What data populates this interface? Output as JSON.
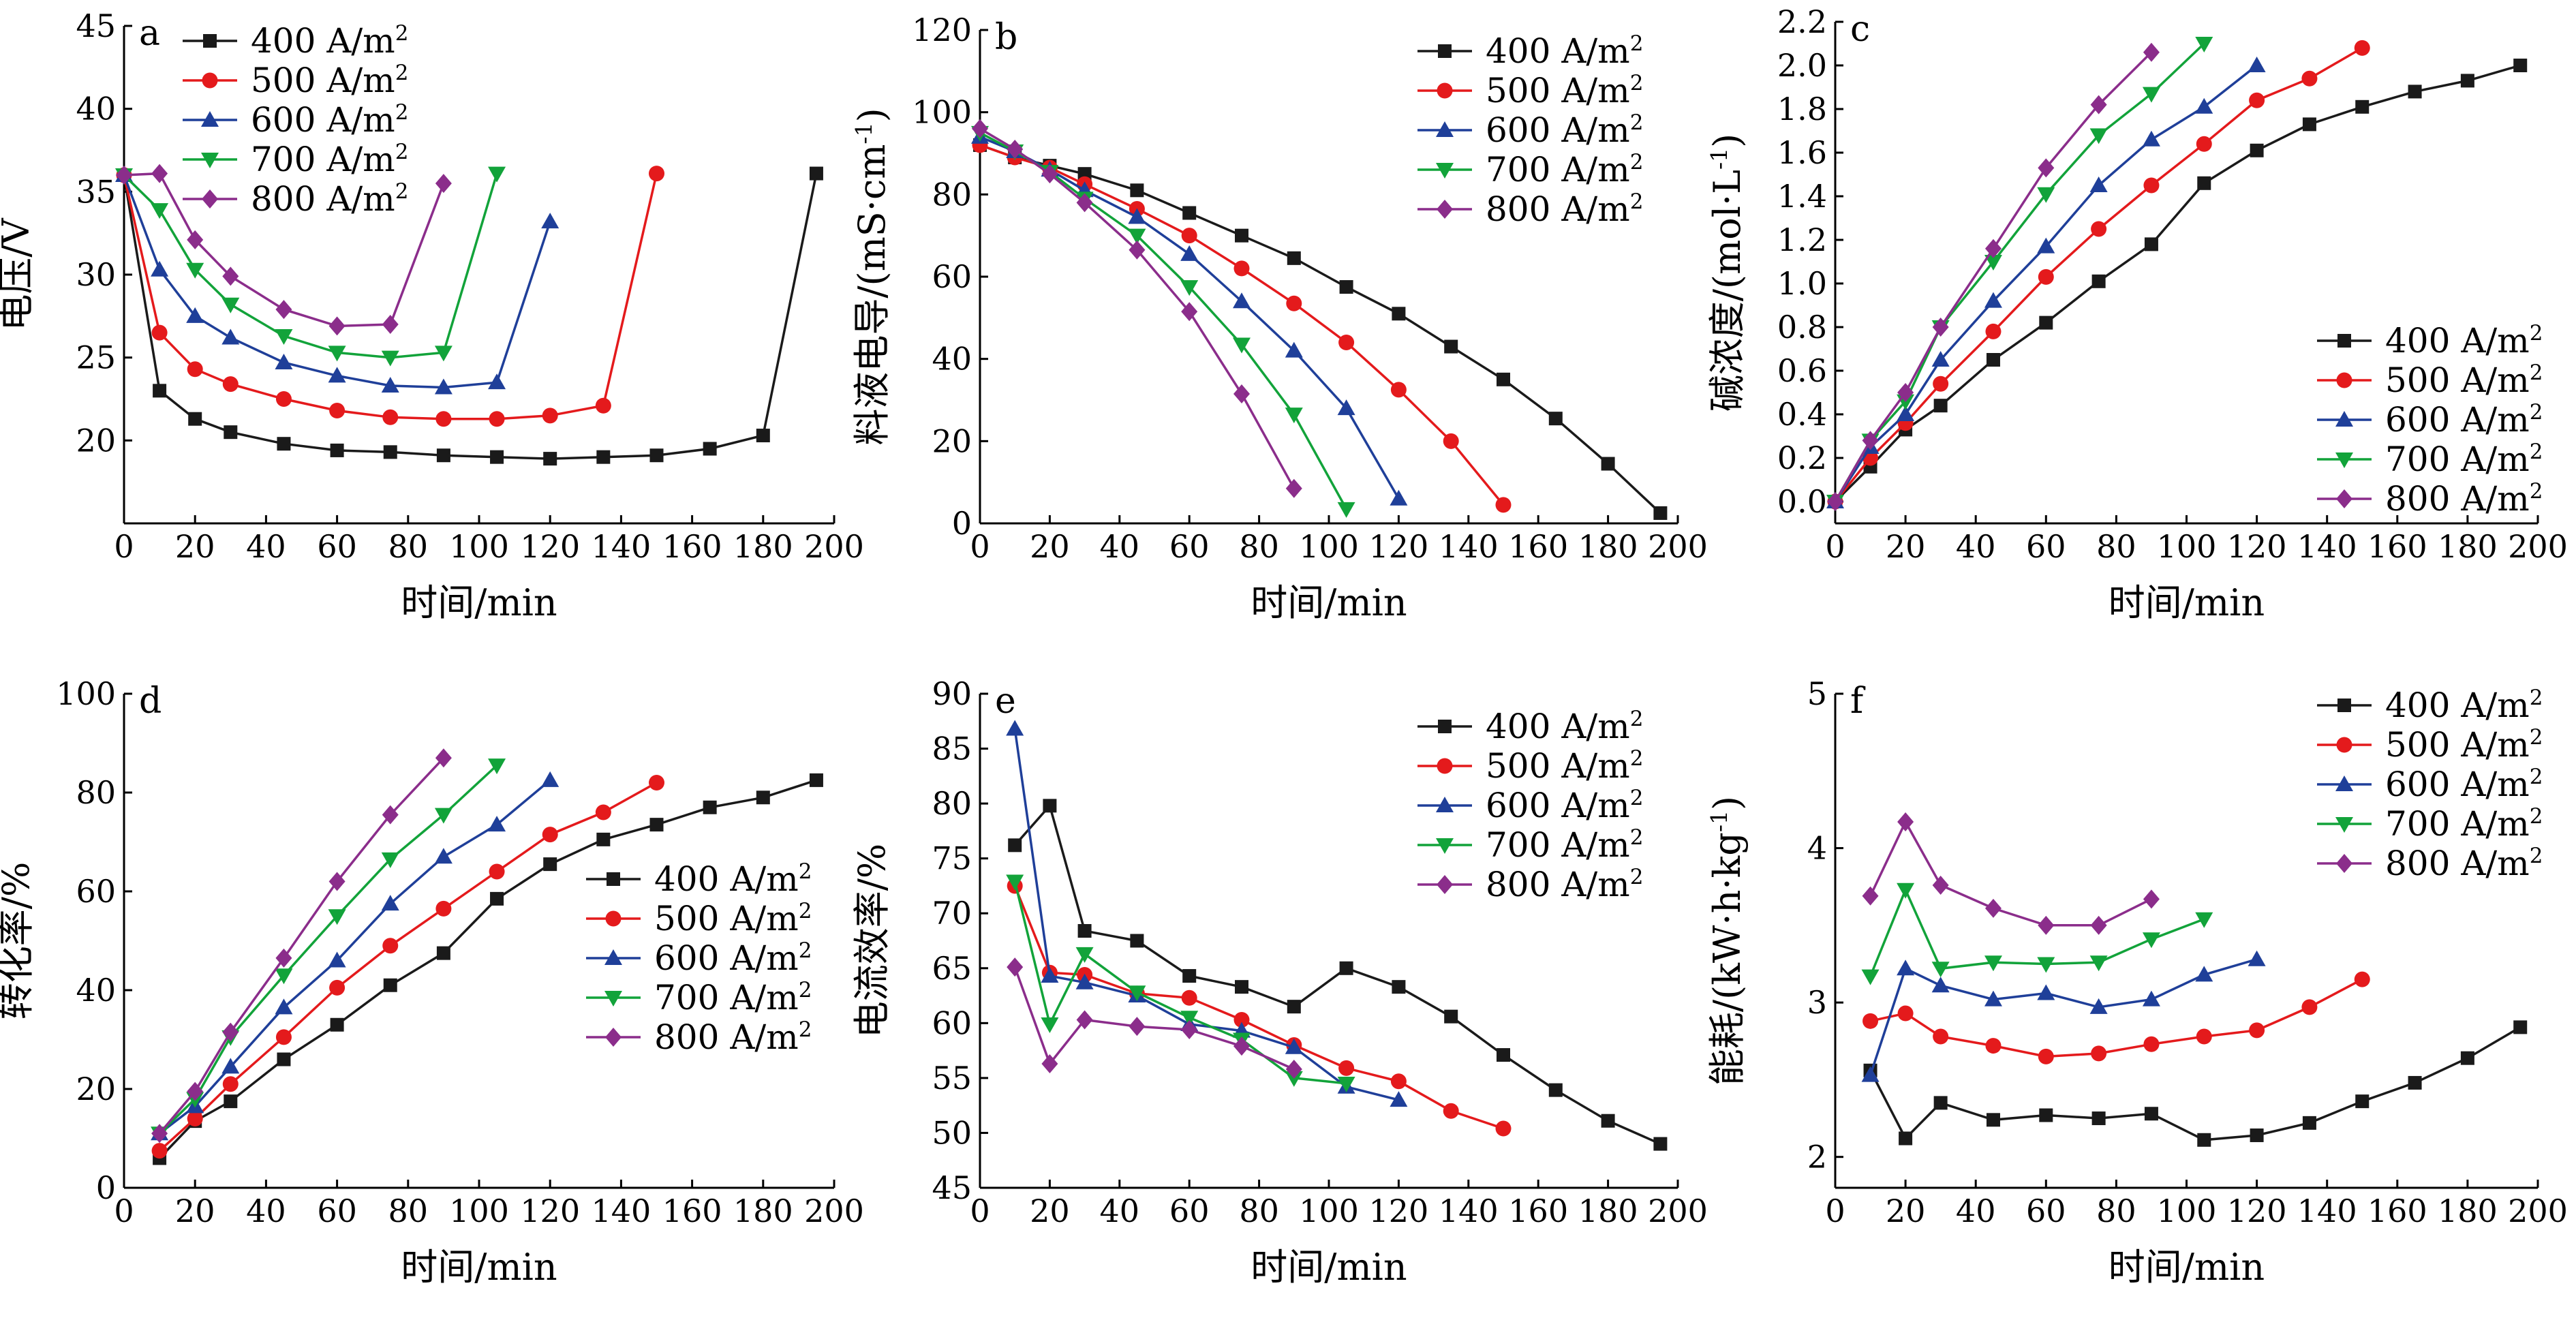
{
  "colors": {
    "400": "#1a1a1a",
    "500": "#e41a1c",
    "600": "#1f3f99",
    "700": "#12a33a",
    "800": "#8b2d8b"
  },
  "markers": {
    "400": "square",
    "500": "circle",
    "600": "triangle-up",
    "700": "triangle-down",
    "800": "diamond"
  },
  "chart_data": [
    {
      "id": "a",
      "panel_label": "a",
      "type": "line",
      "xlabel": "时间/min",
      "ylabel": "电压/V",
      "xlim": [
        0,
        200
      ],
      "ylim": [
        15,
        45
      ],
      "xticks": [
        0,
        20,
        40,
        60,
        80,
        100,
        120,
        140,
        160,
        180,
        200
      ],
      "yticks": [
        20,
        25,
        30,
        35,
        40,
        45
      ],
      "legend": "top-left",
      "grid": false,
      "series": [
        {
          "name": "400 A/m²",
          "key": "400",
          "x": [
            0,
            10,
            20,
            30,
            45,
            60,
            75,
            90,
            105,
            120,
            135,
            150,
            165,
            180,
            195
          ],
          "y": [
            36.0,
            23.0,
            21.3,
            20.5,
            19.8,
            19.4,
            19.3,
            19.1,
            19.0,
            18.9,
            19.0,
            19.1,
            19.5,
            20.3,
            36.1
          ]
        },
        {
          "name": "500 A/m²",
          "key": "500",
          "x": [
            0,
            10,
            20,
            30,
            45,
            60,
            75,
            90,
            105,
            120,
            135,
            150
          ],
          "y": [
            36.0,
            26.5,
            24.3,
            23.4,
            22.5,
            21.8,
            21.4,
            21.3,
            21.3,
            21.5,
            22.1,
            36.1
          ]
        },
        {
          "name": "600 A/m²",
          "key": "600",
          "x": [
            0,
            10,
            20,
            30,
            45,
            60,
            75,
            90,
            105,
            120
          ],
          "y": [
            36.0,
            30.3,
            27.5,
            26.2,
            24.7,
            23.9,
            23.3,
            23.2,
            23.5,
            33.2
          ]
        },
        {
          "name": "700 A/m²",
          "key": "700",
          "x": [
            0,
            10,
            20,
            30,
            45,
            60,
            75,
            90,
            105
          ],
          "y": [
            36.0,
            33.9,
            30.3,
            28.2,
            26.3,
            25.3,
            25.0,
            25.3,
            36.1
          ]
        },
        {
          "name": "800 A/m²",
          "key": "800",
          "x": [
            0,
            10,
            20,
            30,
            45,
            60,
            75,
            90
          ],
          "y": [
            36.0,
            36.1,
            32.1,
            29.9,
            27.9,
            26.9,
            27.0,
            35.5
          ]
        }
      ]
    },
    {
      "id": "b",
      "panel_label": "b",
      "type": "line",
      "xlabel": "时间/min",
      "ylabel": "料液电导/(mS·cm⁻¹)",
      "xlim": [
        0,
        200
      ],
      "ylim": [
        0,
        120
      ],
      "xticks": [
        0,
        20,
        40,
        60,
        80,
        100,
        120,
        140,
        160,
        180,
        200
      ],
      "yticks": [
        0,
        20,
        40,
        60,
        80,
        100,
        120
      ],
      "legend": "top-right",
      "grid": false,
      "series": [
        {
          "name": "400 A/m²",
          "key": "400",
          "x": [
            0,
            10,
            20,
            30,
            45,
            60,
            75,
            90,
            105,
            120,
            135,
            150,
            165,
            180,
            195
          ],
          "y": [
            92,
            89,
            87,
            85,
            81,
            75.5,
            70,
            64.5,
            57.5,
            51,
            43,
            35,
            25.5,
            14.5,
            2.5
          ]
        },
        {
          "name": "500 A/m²",
          "key": "500",
          "x": [
            0,
            10,
            20,
            30,
            45,
            60,
            75,
            90,
            105,
            120,
            135,
            150
          ],
          "y": [
            92,
            89,
            86.5,
            82.5,
            76.5,
            70,
            62,
            53.5,
            44,
            32.5,
            20,
            4.5
          ]
        },
        {
          "name": "600 A/m²",
          "key": "600",
          "x": [
            0,
            10,
            20,
            30,
            45,
            60,
            75,
            90,
            105,
            120
          ],
          "y": [
            94,
            90.5,
            86,
            81,
            74.5,
            65.5,
            54,
            42,
            28,
            6
          ]
        },
        {
          "name": "700 A/m²",
          "key": "700",
          "x": [
            0,
            10,
            20,
            30,
            45,
            60,
            75,
            90,
            105
          ],
          "y": [
            95,
            90.5,
            85.5,
            79,
            70,
            57.5,
            43.5,
            26.5,
            3.5
          ]
        },
        {
          "name": "800 A/m²",
          "key": "800",
          "x": [
            0,
            10,
            20,
            30,
            45,
            60,
            75,
            90
          ],
          "y": [
            96,
            91,
            85,
            78,
            66.5,
            51.5,
            31.5,
            8.5
          ]
        }
      ]
    },
    {
      "id": "c",
      "panel_label": "c",
      "type": "line",
      "xlabel": "时间/min",
      "ylabel": "碱浓度/(mol·L⁻¹)",
      "xlim": [
        0,
        200
      ],
      "ylim": [
        -0.1,
        2.2
      ],
      "xticks": [
        0,
        20,
        40,
        60,
        80,
        100,
        120,
        140,
        160,
        180,
        200
      ],
      "yticks": [
        0.0,
        0.2,
        0.4,
        0.6,
        0.8,
        1.0,
        1.2,
        1.4,
        1.6,
        1.8,
        2.0,
        2.2
      ],
      "ytick_decimals": 1,
      "legend": "right",
      "grid": false,
      "series": [
        {
          "name": "400 A/m²",
          "key": "400",
          "x": [
            0,
            10,
            20,
            30,
            45,
            60,
            75,
            90,
            105,
            120,
            135,
            150,
            165,
            180,
            195
          ],
          "y": [
            0.0,
            0.16,
            0.33,
            0.44,
            0.65,
            0.82,
            1.01,
            1.18,
            1.46,
            1.61,
            1.73,
            1.81,
            1.88,
            1.93,
            2.0
          ]
        },
        {
          "name": "500 A/m²",
          "key": "500",
          "x": [
            0,
            10,
            20,
            30,
            45,
            60,
            75,
            90,
            105,
            120,
            135,
            150
          ],
          "y": [
            0.0,
            0.2,
            0.36,
            0.54,
            0.78,
            1.03,
            1.25,
            1.45,
            1.64,
            1.84,
            1.94,
            2.08
          ]
        },
        {
          "name": "600 A/m²",
          "key": "600",
          "x": [
            0,
            10,
            20,
            30,
            45,
            60,
            75,
            90,
            105,
            120
          ],
          "y": [
            0.0,
            0.25,
            0.4,
            0.65,
            0.92,
            1.17,
            1.45,
            1.66,
            1.81,
            2.0
          ]
        },
        {
          "name": "700 A/m²",
          "key": "700",
          "x": [
            0,
            10,
            20,
            30,
            45,
            60,
            75,
            90,
            105
          ],
          "y": [
            0.0,
            0.28,
            0.46,
            0.8,
            1.1,
            1.41,
            1.68,
            1.87,
            2.1
          ]
        },
        {
          "name": "800 A/m²",
          "key": "800",
          "x": [
            0,
            10,
            20,
            30,
            45,
            60,
            75,
            90
          ],
          "y": [
            0.0,
            0.28,
            0.5,
            0.8,
            1.16,
            1.53,
            1.82,
            2.06
          ]
        }
      ]
    },
    {
      "id": "d",
      "panel_label": "d",
      "type": "line",
      "xlabel": "时间/min",
      "ylabel": "转化率/%",
      "xlim": [
        0,
        200
      ],
      "ylim": [
        0,
        100
      ],
      "xticks": [
        0,
        20,
        40,
        60,
        80,
        100,
        120,
        140,
        160,
        180,
        200
      ],
      "yticks": [
        0,
        20,
        40,
        60,
        80,
        100
      ],
      "legend": "bottom-right",
      "grid": false,
      "series": [
        {
          "name": "400 A/m²",
          "key": "400",
          "x": [
            10,
            20,
            30,
            45,
            60,
            75,
            90,
            105,
            120,
            135,
            150,
            165,
            180,
            195
          ],
          "y": [
            6,
            13.5,
            17.5,
            26,
            33,
            41,
            47.5,
            58.5,
            65.5,
            70.5,
            73.5,
            77,
            79,
            82.5
          ]
        },
        {
          "name": "500 A/m²",
          "key": "500",
          "x": [
            10,
            20,
            30,
            45,
            60,
            75,
            90,
            105,
            120,
            135,
            150
          ],
          "y": [
            7.5,
            14,
            21,
            30.5,
            40.5,
            49,
            56.5,
            64,
            71.5,
            76,
            82
          ]
        },
        {
          "name": "600 A/m²",
          "key": "600",
          "x": [
            10,
            20,
            30,
            45,
            60,
            75,
            90,
            105,
            120
          ],
          "y": [
            11,
            16.5,
            24.5,
            36.5,
            46,
            57.5,
            67,
            73.5,
            82.5
          ]
        },
        {
          "name": "700 A/m²",
          "key": "700",
          "x": [
            10,
            20,
            30,
            45,
            60,
            75,
            90,
            105
          ],
          "y": [
            11,
            18,
            30.5,
            43,
            55,
            66.5,
            75.5,
            85.5
          ]
        },
        {
          "name": "800 A/m²",
          "key": "800",
          "x": [
            10,
            20,
            30,
            45,
            60,
            75,
            90
          ],
          "y": [
            11,
            19.5,
            31.5,
            46.5,
            62,
            75.5,
            87
          ]
        }
      ]
    },
    {
      "id": "e",
      "panel_label": "e",
      "type": "line",
      "xlabel": "时间/min",
      "ylabel": "电流效率/%",
      "xlim": [
        0,
        200
      ],
      "ylim": [
        45,
        90
      ],
      "xticks": [
        0,
        20,
        40,
        60,
        80,
        100,
        120,
        140,
        160,
        180,
        200
      ],
      "yticks": [
        45,
        50,
        55,
        60,
        65,
        70,
        75,
        80,
        85,
        90
      ],
      "legend": "top-right",
      "grid": false,
      "series": [
        {
          "name": "400 A/m²",
          "key": "400",
          "x": [
            10,
            20,
            30,
            45,
            60,
            75,
            90,
            105,
            120,
            135,
            150,
            165,
            180,
            195
          ],
          "y": [
            76.2,
            79.8,
            68.4,
            67.5,
            64.3,
            63.3,
            61.5,
            65.0,
            63.3,
            60.6,
            57.1,
            53.9,
            51.1,
            49.0
          ]
        },
        {
          "name": "500 A/m²",
          "key": "500",
          "x": [
            10,
            20,
            30,
            45,
            60,
            75,
            90,
            105,
            120,
            135,
            150
          ],
          "y": [
            72.5,
            64.6,
            64.4,
            62.7,
            62.3,
            60.3,
            58.0,
            55.9,
            54.7,
            52.0,
            50.4
          ]
        },
        {
          "name": "600 A/m²",
          "key": "600",
          "x": [
            10,
            20,
            30,
            45,
            60,
            75,
            90,
            105,
            120
          ],
          "y": [
            86.8,
            64.3,
            63.7,
            62.5,
            59.9,
            59.3,
            57.8,
            54.2,
            53.0
          ]
        },
        {
          "name": "700 A/m²",
          "key": "700",
          "x": [
            10,
            20,
            30,
            45,
            60,
            75,
            90,
            105
          ],
          "y": [
            72.9,
            59.9,
            66.3,
            62.8,
            60.5,
            58.5,
            55.0,
            54.5
          ]
        },
        {
          "name": "800 A/m²",
          "key": "800",
          "x": [
            10,
            20,
            30,
            45,
            60,
            75,
            90
          ],
          "y": [
            65.1,
            56.3,
            60.3,
            59.7,
            59.4,
            57.9,
            55.8
          ]
        }
      ]
    },
    {
      "id": "f",
      "panel_label": "f",
      "type": "line",
      "xlabel": "时间/min",
      "ylabel": "能耗/(kW·h·kg⁻¹)",
      "xlim": [
        0,
        200
      ],
      "ylim": [
        1.8,
        5
      ],
      "xticks": [
        0,
        20,
        40,
        60,
        80,
        100,
        120,
        140,
        160,
        180,
        200
      ],
      "yticks": [
        2,
        3,
        4,
        5
      ],
      "legend": "top-right",
      "grid": false,
      "series": [
        {
          "name": "400 A/m²",
          "key": "400",
          "x": [
            10,
            20,
            30,
            45,
            60,
            75,
            90,
            105,
            120,
            135,
            150,
            165,
            180,
            195
          ],
          "y": [
            2.56,
            2.12,
            2.35,
            2.24,
            2.27,
            2.25,
            2.28,
            2.11,
            2.14,
            2.22,
            2.36,
            2.48,
            2.64,
            2.84
          ]
        },
        {
          "name": "500 A/m²",
          "key": "500",
          "x": [
            10,
            20,
            30,
            45,
            60,
            75,
            90,
            105,
            120,
            135,
            150
          ],
          "y": [
            2.88,
            2.93,
            2.78,
            2.72,
            2.65,
            2.67,
            2.73,
            2.78,
            2.82,
            2.97,
            3.15
          ]
        },
        {
          "name": "600 A/m²",
          "key": "600",
          "x": [
            10,
            20,
            30,
            45,
            60,
            75,
            90,
            105,
            120
          ],
          "y": [
            2.53,
            3.22,
            3.11,
            3.02,
            3.06,
            2.97,
            3.02,
            3.18,
            3.28
          ]
        },
        {
          "name": "700 A/m²",
          "key": "700",
          "x": [
            10,
            20,
            30,
            45,
            60,
            75,
            90,
            105
          ],
          "y": [
            3.17,
            3.73,
            3.22,
            3.26,
            3.25,
            3.26,
            3.41,
            3.54
          ]
        },
        {
          "name": "800 A/m²",
          "key": "800",
          "x": [
            10,
            20,
            30,
            45,
            60,
            75,
            90
          ],
          "y": [
            3.69,
            4.17,
            3.76,
            3.61,
            3.5,
            3.5,
            3.67
          ]
        }
      ]
    }
  ]
}
